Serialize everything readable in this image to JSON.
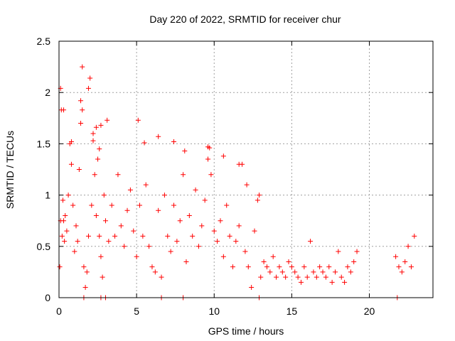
{
  "chart_data": {
    "type": "scatter",
    "title": "Day 220 of 2022, SRMTID for receiver chur",
    "xlabel": "GPS time / hours",
    "ylabel": "SRMTID / TECUs",
    "xlim": [
      0,
      24.1
    ],
    "ylim": [
      0,
      2.5
    ],
    "x_ticks": [
      "0",
      "5",
      "10",
      "15",
      "20"
    ],
    "x_tick_values": [
      0,
      5,
      10,
      15,
      20
    ],
    "y_ticks": [
      "0",
      "0.5",
      "1",
      "1.5",
      "2",
      "2.5"
    ],
    "y_tick_values": [
      0,
      0.5,
      1,
      1.5,
      2,
      2.5
    ],
    "grid": true,
    "marker": "+",
    "series": [
      {
        "name": "SRMTID",
        "color": "#ff0000",
        "x": [
          0.05,
          0.1,
          0.15,
          0.2,
          0.25,
          0.3,
          0.35,
          0.4,
          0.5,
          0.6,
          0.7,
          0.8,
          0.9,
          1.0,
          1.1,
          1.2,
          1.3,
          1.4,
          1.5,
          1.6,
          1.7,
          1.8,
          1.9,
          2.0,
          2.1,
          2.2,
          2.3,
          2.4,
          2.5,
          2.6,
          2.7,
          2.8,
          2.9,
          3.0,
          3.2,
          3.4,
          3.6,
          3.8,
          4.0,
          4.2,
          4.4,
          4.6,
          4.8,
          5.0,
          5.2,
          5.4,
          5.6,
          5.8,
          6.0,
          6.2,
          6.4,
          6.6,
          6.8,
          7.0,
          7.2,
          7.4,
          7.6,
          7.8,
          8.0,
          8.2,
          8.4,
          8.6,
          8.8,
          9.0,
          9.2,
          9.4,
          9.6,
          9.8,
          10.0,
          10.2,
          10.4,
          10.6,
          10.8,
          11.0,
          11.2,
          11.4,
          11.6,
          11.8,
          12.0,
          12.2,
          12.4,
          12.6,
          12.8,
          13.0,
          13.2,
          13.4,
          13.6,
          13.8,
          14.0,
          14.2,
          14.4,
          14.6,
          14.8,
          15.0,
          15.2,
          15.4,
          15.6,
          15.8,
          16.0,
          16.2,
          16.4,
          16.6,
          16.8,
          17.0,
          17.2,
          17.4,
          17.6,
          17.8,
          18.0,
          18.2,
          18.4,
          18.6,
          18.8,
          19.0,
          19.2,
          21.7,
          21.9,
          22.1,
          22.3,
          22.5,
          22.7,
          22.9,
          0.1,
          0.3,
          0.8,
          1.4,
          1.5,
          1.9,
          2.2,
          2.4,
          2.6,
          2.7,
          3.1,
          5.1,
          5.5,
          6.4,
          7.4,
          8.1,
          9.6,
          9.7,
          10.6,
          11.6,
          12.1,
          12.9,
          1.6,
          2.7,
          3.0,
          6.6,
          8.0,
          12.9,
          21.8
        ],
        "y": [
          0.3,
          2.04,
          1.83,
          0.6,
          0.95,
          0.75,
          0.55,
          0.8,
          0.65,
          1.0,
          1.5,
          1.3,
          0.9,
          0.45,
          0.7,
          0.55,
          1.25,
          1.7,
          2.25,
          0.3,
          0.1,
          0.25,
          0.6,
          2.14,
          0.9,
          1.6,
          1.2,
          0.8,
          1.35,
          0.6,
          0.4,
          0.2,
          1.0,
          0.75,
          0.55,
          0.9,
          0.6,
          1.2,
          0.7,
          0.5,
          0.85,
          1.05,
          0.65,
          0.4,
          0.9,
          0.6,
          1.1,
          0.5,
          0.3,
          0.25,
          0.85,
          0.2,
          1.0,
          0.6,
          0.45,
          0.9,
          0.55,
          0.75,
          1.2,
          0.35,
          0.8,
          0.6,
          1.05,
          0.5,
          0.7,
          0.95,
          1.35,
          1.2,
          0.65,
          0.55,
          0.75,
          0.4,
          0.9,
          0.6,
          0.3,
          0.55,
          0.7,
          1.3,
          0.45,
          0.3,
          0.1,
          0.65,
          0.95,
          0.2,
          0.35,
          0.3,
          0.25,
          0.4,
          0.2,
          0.3,
          0.25,
          0.2,
          0.35,
          0.3,
          0.25,
          0.2,
          0.15,
          0.3,
          0.2,
          0.55,
          0.25,
          0.2,
          0.3,
          0.25,
          0.2,
          0.3,
          0.15,
          0.25,
          0.45,
          0.2,
          0.15,
          0.3,
          0.25,
          0.35,
          0.45,
          0.4,
          0.3,
          0.25,
          0.35,
          0.5,
          0.3,
          0.6,
          0.75,
          1.83,
          1.52,
          1.92,
          1.83,
          2.04,
          1.53,
          1.66,
          1.45,
          1.68,
          1.73,
          1.73,
          1.51,
          1.57,
          1.52,
          1.43,
          1.47,
          1.46,
          1.38,
          1.3,
          1.1,
          1.0,
          0.0,
          0.0,
          0.0,
          0.0,
          0.0,
          0.0,
          0.0
        ]
      }
    ]
  }
}
